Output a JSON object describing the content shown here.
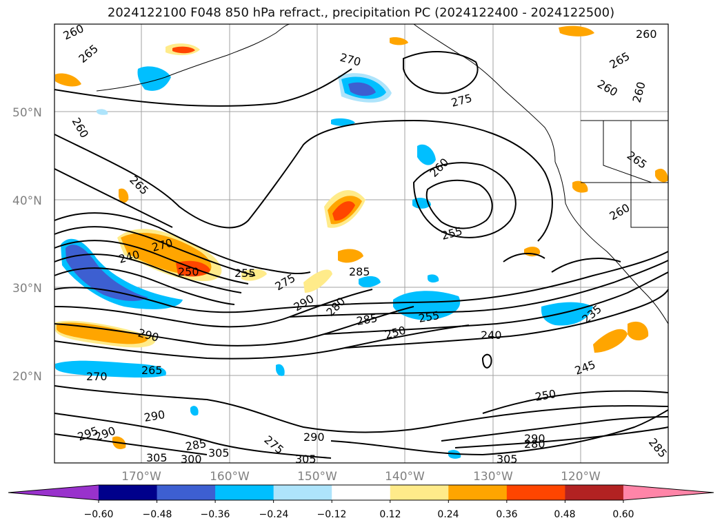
{
  "title": "2024122100 F048 850 hPa refract., precipitation PC (2024122400 - 2024122500)",
  "lat_labels": [
    "50°N",
    "40°N",
    "30°N",
    "20°N"
  ],
  "lon_labels": [
    "170°W",
    "160°W",
    "150°W",
    "140°W",
    "130°W",
    "120°W"
  ],
  "contour_labels": [
    "260",
    "265",
    "270",
    "275",
    "260",
    "255",
    "260",
    "260",
    "265",
    "260",
    "260",
    "265",
    "270",
    "240",
    "250",
    "255",
    "275",
    "285",
    "290",
    "280",
    "285",
    "250",
    "255",
    "240",
    "235",
    "245",
    "250",
    "290",
    "270",
    "265",
    "290",
    "295",
    "290",
    "285",
    "275",
    "290",
    "300",
    "305",
    "305",
    "305",
    "290",
    "305",
    "280",
    "285",
    "260",
    "265"
  ],
  "colorbar": {
    "ticks": [
      "−0.60",
      "−0.48",
      "−0.36",
      "−0.24",
      "−0.12",
      "0.12",
      "0.24",
      "0.36",
      "0.48",
      "0.60"
    ],
    "colors": [
      "#9932cc",
      "#00008b",
      "#3d5fd1",
      "#00bfff",
      "#aee4fb",
      "#ffffff",
      "#ffeb8a",
      "#ffa500",
      "#ff4500",
      "#b22222",
      "#ff85a8"
    ]
  },
  "colors": {
    "contour": "#000000",
    "grid": "#a0a0a0",
    "coast": "#000000"
  }
}
